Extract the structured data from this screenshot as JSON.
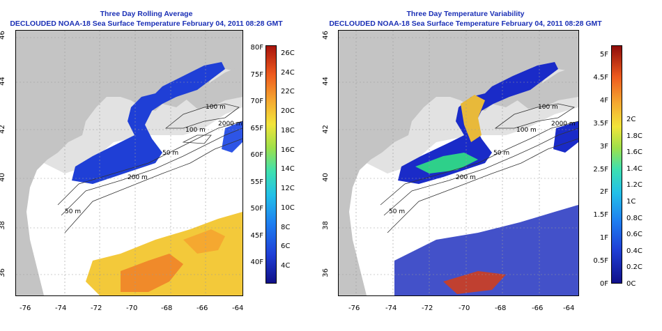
{
  "panels": [
    {
      "title_line1": "Three Day Rolling Average",
      "title_line2": "DECLOUDED NOAA-18 Sea Surface Temperature February 04, 2011 08:28 GMT",
      "x_ticks": [
        "-76",
        "-74",
        "-72",
        "-70",
        "-68",
        "-66",
        "-64"
      ],
      "y_ticks": [
        "46",
        "44",
        "42",
        "40",
        "38",
        "36"
      ],
      "contour_labels": [
        "100 m",
        "100 m",
        "2000 m",
        "50 m",
        "200 m",
        "50 m"
      ],
      "colorbar_left_labels": [
        "80F",
        "75F",
        "70F",
        "65F",
        "60F",
        "55F",
        "50F",
        "45F",
        "40F"
      ],
      "colorbar_right_labels": [
        "26C",
        "24C",
        "22C",
        "20C",
        "18C",
        "16C",
        "14C",
        "12C",
        "10C",
        "8C",
        "6C",
        "4C"
      ]
    },
    {
      "title_line1": "Three Day Temperature Variability",
      "title_line2": "DECLOUDED NOAA-18 Sea Surface Temperature February 04, 2011 08:28 GMT",
      "x_ticks": [
        "-76",
        "-74",
        "-72",
        "-70",
        "-68",
        "-66",
        "-64"
      ],
      "y_ticks": [
        "46",
        "44",
        "42",
        "40",
        "38",
        "36"
      ],
      "contour_labels": [
        "100 m",
        "100 m",
        "2000 m",
        "50 m",
        "200 m",
        "50 m"
      ],
      "colorbar_left_labels": [
        "5F",
        "4.5F",
        "4F",
        "3.5F",
        "3F",
        "2.5F",
        "2F",
        "1.5F",
        "1F",
        "0.5F",
        "0F"
      ],
      "colorbar_right_labels": [
        "2C",
        "1.8C",
        "1.6C",
        "1.4C",
        "1.2C",
        "1C",
        "0.8C",
        "0.6C",
        "0.4C",
        "0.2C",
        "0C"
      ]
    }
  ],
  "colors": {
    "title": "#1a2fb5",
    "land": "#c4c4c4",
    "shelf": "#e2e2e2",
    "sea_missing": "#ffffff",
    "grid": "#9a9a9a"
  }
}
